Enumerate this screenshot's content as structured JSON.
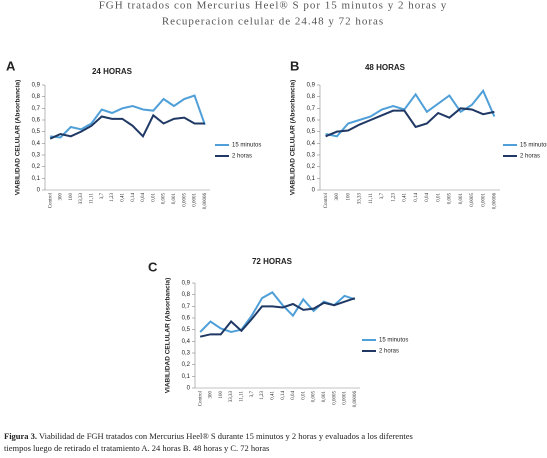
{
  "header": {
    "lines": [
      "FGH tratados con Mercurius Heel® S por 15 minutos y 2 horas y",
      "Recuperacion celular de 24.48 y 72 horas"
    ]
  },
  "chart_data": [
    {
      "type": "line",
      "panel": "A",
      "title": "24 HORAS",
      "ylabel": "VIABILIDAD CELULAR (Absorbancia)",
      "categories": [
        "Control",
        "300",
        "100",
        "33,33",
        "11,11",
        "3,7",
        "1,23",
        "0,41",
        "0,14",
        "0,04",
        "0,01",
        "0,005",
        "0,001",
        "0,0005",
        "0,0001",
        "0,00006"
      ],
      "series": [
        {
          "name": "15 minutos",
          "color": "#4f9fd8",
          "values": [
            0.46,
            0.45,
            0.54,
            0.52,
            0.57,
            0.69,
            0.66,
            0.7,
            0.72,
            0.69,
            0.68,
            0.78,
            0.72,
            0.78,
            0.81,
            0.56
          ]
        },
        {
          "name": "2 horas",
          "color": "#1f3864",
          "values": [
            0.44,
            0.48,
            0.46,
            0.5,
            0.55,
            0.63,
            0.61,
            0.61,
            0.55,
            0.46,
            0.64,
            0.57,
            0.61,
            0.62,
            0.57,
            0.57
          ]
        }
      ],
      "ylim": [
        0,
        0.9
      ],
      "yticks": [
        0,
        {
          "value": 0.1,
          "label": "0,1"
        },
        {
          "value": 0.2,
          "label": "0,2"
        },
        {
          "value": 0.3,
          "label": "0,3"
        },
        {
          "value": 0.4,
          "label": "0,4"
        },
        {
          "value": 0.5,
          "label": "0,5"
        },
        {
          "value": 0.6,
          "label": "0,6"
        },
        {
          "value": 0.7,
          "label": "0,7"
        },
        {
          "value": 0.8,
          "label": "0,8"
        },
        {
          "value": 0.9,
          "label": "0,9"
        }
      ],
      "legend": "right"
    },
    {
      "type": "line",
      "panel": "B",
      "title": "48 HORAS",
      "ylabel": "VIABILIDAD CELULAR (Absorbancia)",
      "categories": [
        "Control",
        "300",
        "100",
        "33,33",
        "11,11",
        "3,7",
        "1,23",
        "0,41",
        "0,14",
        "0,04",
        "0,01",
        "0,005",
        "0,001",
        "0,0005",
        "0,0001",
        "0,00006"
      ],
      "series": [
        {
          "name": "15 minutos",
          "color": "#4f9fd8",
          "values": [
            0.48,
            0.46,
            0.57,
            0.6,
            0.63,
            0.69,
            0.72,
            0.69,
            0.82,
            0.67,
            0.74,
            0.81,
            0.67,
            0.73,
            0.85,
            0.63
          ]
        },
        {
          "name": "2 horas",
          "color": "#1f3864",
          "values": [
            0.46,
            0.5,
            0.51,
            0.56,
            0.6,
            0.64,
            0.68,
            0.68,
            0.54,
            0.57,
            0.66,
            0.62,
            0.7,
            0.69,
            0.65,
            0.67
          ]
        }
      ],
      "ylim": [
        0,
        0.9
      ],
      "yticks": [
        0,
        {
          "value": 0.1,
          "label": "0,1"
        },
        {
          "value": 0.2,
          "label": "0,2"
        },
        {
          "value": 0.3,
          "label": "0,3"
        },
        {
          "value": 0.4,
          "label": "0,4"
        },
        {
          "value": 0.5,
          "label": "0,5"
        },
        {
          "value": 0.6,
          "label": "0,6"
        },
        {
          "value": 0.7,
          "label": "0,7"
        },
        {
          "value": 0.8,
          "label": "0,8"
        },
        {
          "value": 0.9,
          "label": "0,9"
        }
      ],
      "legend": "right"
    },
    {
      "type": "line",
      "panel": "C",
      "title": "72 HORAS",
      "ylabel": "VIABILIDAD CELULAR (Absorbancia)",
      "categories": [
        "Control",
        "300",
        "100",
        "33,33",
        "11,11",
        "3,7",
        "1,23",
        "0,41",
        "0,14",
        "0,04",
        "0,01",
        "0,005",
        "0,001",
        "0,0005",
        "0,0001",
        "0,00006"
      ],
      "series": [
        {
          "name": "15 minutos",
          "color": "#4f9fd8",
          "values": [
            0.48,
            0.57,
            0.51,
            0.48,
            0.5,
            0.62,
            0.77,
            0.82,
            0.71,
            0.62,
            0.76,
            0.66,
            0.74,
            0.71,
            0.79,
            0.76
          ]
        },
        {
          "name": "2 horas",
          "color": "#1f3864",
          "values": [
            0.44,
            0.46,
            0.46,
            0.57,
            0.49,
            0.59,
            0.7,
            0.7,
            0.69,
            0.72,
            0.67,
            0.68,
            0.73,
            0.71,
            0.74,
            0.77
          ]
        }
      ],
      "ylim": [
        0,
        0.9
      ],
      "yticks": [
        0,
        {
          "value": 0.1,
          "label": "0,1"
        },
        {
          "value": 0.2,
          "label": "0,2"
        },
        {
          "value": 0.3,
          "label": "0,3"
        },
        {
          "value": 0.4,
          "label": "0,4"
        },
        {
          "value": 0.5,
          "label": "0,5"
        },
        {
          "value": 0.6,
          "label": "0,6"
        },
        {
          "value": 0.7,
          "label": "0,7"
        },
        {
          "value": 0.8,
          "label": "0,8"
        },
        {
          "value": 0.9,
          "label": "0,9"
        }
      ],
      "legend": "right"
    }
  ],
  "caption": {
    "label": "Figura 3.",
    "lines": [
      "Viabilidad de FGH tratados con Mercurius Heel® S durante 15 minutos y 2 horas y evaluados a los diferentes",
      "tiempos luego de retirado el tratamiento A. 24 horas B. 48 horas y C. 72 horas"
    ]
  }
}
